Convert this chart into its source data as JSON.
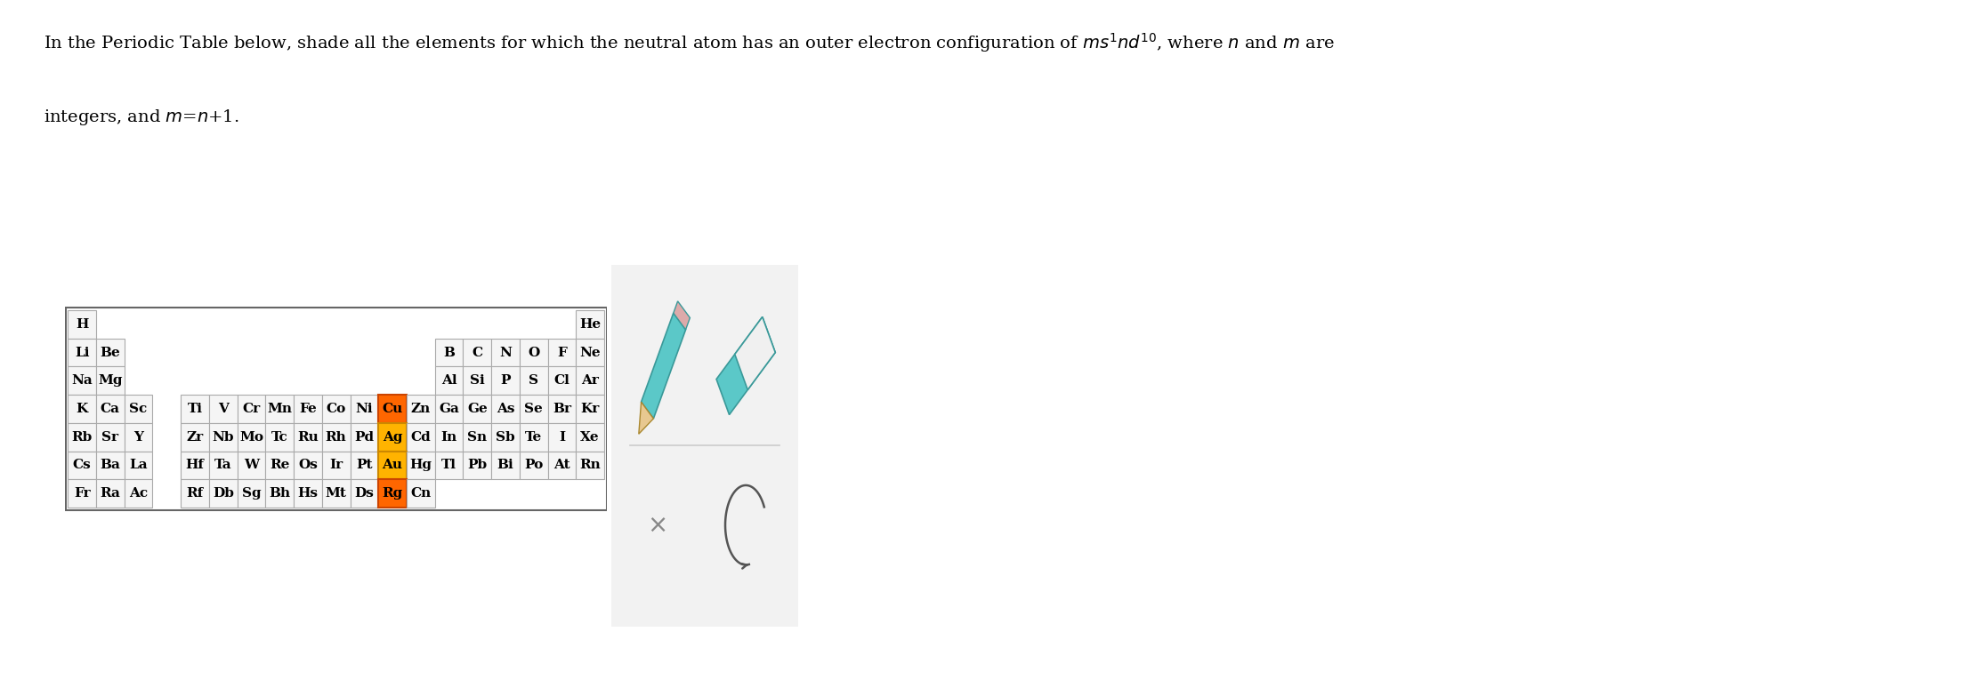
{
  "bg_color": "#ffffff",
  "cell_face_color": "#f5f5f5",
  "cell_edge_color": "#aaaaaa",
  "table_border_color": "#666666",
  "highlight_orange": "#FF6600",
  "highlight_yellow": "#FFB300",
  "highlight_orange_edge": "#CC4400",
  "highlight_yellow_edge": "#CC8800",
  "text_color": "#000000",
  "widget_bg": "#f2f2f2",
  "widget_border": "#cccccc",
  "pencil_color": "#5bc8c8",
  "pencil_edge": "#3a9999",
  "title_line1": "In the Periodic Table below, shade all the elements for which the neutral atom has an outer electron configuration of $ms^{\\,1}nd^{10}$, where $n$ and $m$ are",
  "title_line2": "integers, and $m$=$n$+1.",
  "title_fontsize": 14,
  "cell_fontsize": 11,
  "elements": [
    {
      "symbol": "H",
      "row": 0,
      "col": 0,
      "highlight": null
    },
    {
      "symbol": "He",
      "row": 0,
      "col": 18,
      "highlight": null
    },
    {
      "symbol": "Li",
      "row": 1,
      "col": 0,
      "highlight": null
    },
    {
      "symbol": "Be",
      "row": 1,
      "col": 1,
      "highlight": null
    },
    {
      "symbol": "B",
      "row": 1,
      "col": 13,
      "highlight": null
    },
    {
      "symbol": "C",
      "row": 1,
      "col": 14,
      "highlight": null
    },
    {
      "symbol": "N",
      "row": 1,
      "col": 15,
      "highlight": null
    },
    {
      "symbol": "O",
      "row": 1,
      "col": 16,
      "highlight": null
    },
    {
      "symbol": "F",
      "row": 1,
      "col": 17,
      "highlight": null
    },
    {
      "symbol": "Ne",
      "row": 1,
      "col": 18,
      "highlight": null
    },
    {
      "symbol": "Na",
      "row": 2,
      "col": 0,
      "highlight": null
    },
    {
      "symbol": "Mg",
      "row": 2,
      "col": 1,
      "highlight": null
    },
    {
      "symbol": "Al",
      "row": 2,
      "col": 13,
      "highlight": null
    },
    {
      "symbol": "Si",
      "row": 2,
      "col": 14,
      "highlight": null
    },
    {
      "symbol": "P",
      "row": 2,
      "col": 15,
      "highlight": null
    },
    {
      "symbol": "S",
      "row": 2,
      "col": 16,
      "highlight": null
    },
    {
      "symbol": "Cl",
      "row": 2,
      "col": 17,
      "highlight": null
    },
    {
      "symbol": "Ar",
      "row": 2,
      "col": 18,
      "highlight": null
    },
    {
      "symbol": "K",
      "row": 3,
      "col": 0,
      "highlight": null
    },
    {
      "symbol": "Ca",
      "row": 3,
      "col": 1,
      "highlight": null
    },
    {
      "symbol": "Sc",
      "row": 3,
      "col": 2,
      "highlight": null
    },
    {
      "symbol": "Ti",
      "row": 3,
      "col": 4,
      "highlight": null
    },
    {
      "symbol": "V",
      "row": 3,
      "col": 5,
      "highlight": null
    },
    {
      "symbol": "Cr",
      "row": 3,
      "col": 6,
      "highlight": null
    },
    {
      "symbol": "Mn",
      "row": 3,
      "col": 7,
      "highlight": null
    },
    {
      "symbol": "Fe",
      "row": 3,
      "col": 8,
      "highlight": null
    },
    {
      "symbol": "Co",
      "row": 3,
      "col": 9,
      "highlight": null
    },
    {
      "symbol": "Ni",
      "row": 3,
      "col": 10,
      "highlight": null
    },
    {
      "symbol": "Cu",
      "row": 3,
      "col": 11,
      "highlight": "orange"
    },
    {
      "symbol": "Zn",
      "row": 3,
      "col": 12,
      "highlight": null
    },
    {
      "symbol": "Ga",
      "row": 3,
      "col": 13,
      "highlight": null
    },
    {
      "symbol": "Ge",
      "row": 3,
      "col": 14,
      "highlight": null
    },
    {
      "symbol": "As",
      "row": 3,
      "col": 15,
      "highlight": null
    },
    {
      "symbol": "Se",
      "row": 3,
      "col": 16,
      "highlight": null
    },
    {
      "symbol": "Br",
      "row": 3,
      "col": 17,
      "highlight": null
    },
    {
      "symbol": "Kr",
      "row": 3,
      "col": 18,
      "highlight": null
    },
    {
      "symbol": "Rb",
      "row": 4,
      "col": 0,
      "highlight": null
    },
    {
      "symbol": "Sr",
      "row": 4,
      "col": 1,
      "highlight": null
    },
    {
      "symbol": "Y",
      "row": 4,
      "col": 2,
      "highlight": null
    },
    {
      "symbol": "Zr",
      "row": 4,
      "col": 4,
      "highlight": null
    },
    {
      "symbol": "Nb",
      "row": 4,
      "col": 5,
      "highlight": null
    },
    {
      "symbol": "Mo",
      "row": 4,
      "col": 6,
      "highlight": null
    },
    {
      "symbol": "Tc",
      "row": 4,
      "col": 7,
      "highlight": null
    },
    {
      "symbol": "Ru",
      "row": 4,
      "col": 8,
      "highlight": null
    },
    {
      "symbol": "Rh",
      "row": 4,
      "col": 9,
      "highlight": null
    },
    {
      "symbol": "Pd",
      "row": 4,
      "col": 10,
      "highlight": null
    },
    {
      "symbol": "Ag",
      "row": 4,
      "col": 11,
      "highlight": "yellow"
    },
    {
      "symbol": "Cd",
      "row": 4,
      "col": 12,
      "highlight": null
    },
    {
      "symbol": "In",
      "row": 4,
      "col": 13,
      "highlight": null
    },
    {
      "symbol": "Sn",
      "row": 4,
      "col": 14,
      "highlight": null
    },
    {
      "symbol": "Sb",
      "row": 4,
      "col": 15,
      "highlight": null
    },
    {
      "symbol": "Te",
      "row": 4,
      "col": 16,
      "highlight": null
    },
    {
      "symbol": "I",
      "row": 4,
      "col": 17,
      "highlight": null
    },
    {
      "symbol": "Xe",
      "row": 4,
      "col": 18,
      "highlight": null
    },
    {
      "symbol": "Cs",
      "row": 5,
      "col": 0,
      "highlight": null
    },
    {
      "symbol": "Ba",
      "row": 5,
      "col": 1,
      "highlight": null
    },
    {
      "symbol": "La",
      "row": 5,
      "col": 2,
      "highlight": null
    },
    {
      "symbol": "Hf",
      "row": 5,
      "col": 4,
      "highlight": null
    },
    {
      "symbol": "Ta",
      "row": 5,
      "col": 5,
      "highlight": null
    },
    {
      "symbol": "W",
      "row": 5,
      "col": 6,
      "highlight": null
    },
    {
      "symbol": "Re",
      "row": 5,
      "col": 7,
      "highlight": null
    },
    {
      "symbol": "Os",
      "row": 5,
      "col": 8,
      "highlight": null
    },
    {
      "symbol": "Ir",
      "row": 5,
      "col": 9,
      "highlight": null
    },
    {
      "symbol": "Pt",
      "row": 5,
      "col": 10,
      "highlight": null
    },
    {
      "symbol": "Au",
      "row": 5,
      "col": 11,
      "highlight": "yellow"
    },
    {
      "symbol": "Hg",
      "row": 5,
      "col": 12,
      "highlight": null
    },
    {
      "symbol": "Tl",
      "row": 5,
      "col": 13,
      "highlight": null
    },
    {
      "symbol": "Pb",
      "row": 5,
      "col": 14,
      "highlight": null
    },
    {
      "symbol": "Bi",
      "row": 5,
      "col": 15,
      "highlight": null
    },
    {
      "symbol": "Po",
      "row": 5,
      "col": 16,
      "highlight": null
    },
    {
      "symbol": "At",
      "row": 5,
      "col": 17,
      "highlight": null
    },
    {
      "symbol": "Rn",
      "row": 5,
      "col": 18,
      "highlight": null
    },
    {
      "symbol": "Fr",
      "row": 6,
      "col": 0,
      "highlight": null
    },
    {
      "symbol": "Ra",
      "row": 6,
      "col": 1,
      "highlight": null
    },
    {
      "symbol": "Ac",
      "row": 6,
      "col": 2,
      "highlight": null
    },
    {
      "symbol": "Rf",
      "row": 6,
      "col": 4,
      "highlight": null
    },
    {
      "symbol": "Db",
      "row": 6,
      "col": 5,
      "highlight": null
    },
    {
      "symbol": "Sg",
      "row": 6,
      "col": 6,
      "highlight": null
    },
    {
      "symbol": "Bh",
      "row": 6,
      "col": 7,
      "highlight": null
    },
    {
      "symbol": "Hs",
      "row": 6,
      "col": 8,
      "highlight": null
    },
    {
      "symbol": "Mt",
      "row": 6,
      "col": 9,
      "highlight": null
    },
    {
      "symbol": "Ds",
      "row": 6,
      "col": 10,
      "highlight": null
    },
    {
      "symbol": "Rg",
      "row": 6,
      "col": 11,
      "highlight": "orange"
    },
    {
      "symbol": "Cn",
      "row": 6,
      "col": 12,
      "highlight": null
    }
  ]
}
